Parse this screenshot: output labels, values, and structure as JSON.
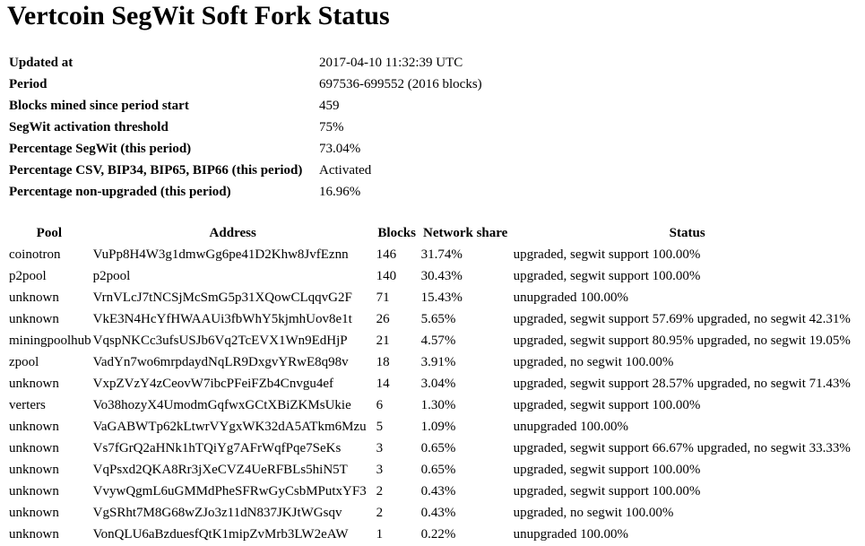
{
  "header": {
    "title": "Vertcoin SegWit Soft Fork Status"
  },
  "summary": {
    "rows": [
      [
        "Updated at",
        "2017-04-10 11:32:39 UTC"
      ],
      [
        "Period",
        "697536-699552 (2016 blocks)"
      ],
      [
        "Blocks mined since period start",
        "459"
      ],
      [
        "SegWit activation threshold",
        "75%"
      ],
      [
        "Percentage SegWit (this period)",
        "73.04%"
      ],
      [
        "Percentage CSV, BIP34, BIP65, BIP66 (this period)",
        "Activated"
      ],
      [
        "Percentage non-upgraded (this period)",
        "16.96%"
      ]
    ]
  },
  "table": {
    "headers": [
      "Pool",
      "Address",
      "Blocks",
      "Network share",
      "Status"
    ],
    "rows": [
      [
        "coinotron",
        "VuPp8H4W3g1dmwGg6pe41D2Khw8JvfEznn",
        "146",
        "31.74%",
        "upgraded, segwit support 100.00%"
      ],
      [
        "p2pool",
        "p2pool",
        "140",
        "30.43%",
        "upgraded, segwit support 100.00%"
      ],
      [
        "unknown",
        "VrnVLcJ7tNCSjMcSmG5p31XQowCLqqvG2F",
        "71",
        "15.43%",
        "unupgraded 100.00%"
      ],
      [
        "unknown",
        "VkE3N4HcYfHWAAUi3fbWhY5kjmhUov8e1t",
        "26",
        "5.65%",
        "upgraded, segwit support 57.69% upgraded, no segwit 42.31%"
      ],
      [
        "miningpoolhub",
        "VqspNKCc3ufsUSJb6Vq2TcEVX1Wn9EdHjP",
        "21",
        "4.57%",
        "upgraded, segwit support 80.95% upgraded, no segwit 19.05%"
      ],
      [
        "zpool",
        "VadYn7wo6mrpdaydNqLR9DxgvYRwE8q98v",
        "18",
        "3.91%",
        "upgraded, no segwit 100.00%"
      ],
      [
        "unknown",
        "VxpZVzY4zCeovW7ibcPFeiFZb4Cnvgu4ef",
        "14",
        "3.04%",
        "upgraded, segwit support 28.57% upgraded, no segwit 71.43%"
      ],
      [
        "verters",
        "Vo38hozyX4UmodmGqfwxGCtXBiZKMsUkie",
        "6",
        "1.30%",
        "upgraded, segwit support 100.00%"
      ],
      [
        "unknown",
        "VaGABWTp62kLtwrVYgxWK32dA5ATkm6Mzu",
        "5",
        "1.09%",
        "unupgraded 100.00%"
      ],
      [
        "unknown",
        "Vs7fGrQ2aHNk1hTQiYg7AFrWqfPqe7SeKs",
        "3",
        "0.65%",
        "upgraded, segwit support 66.67% upgraded, no segwit 33.33%"
      ],
      [
        "unknown",
        "VqPsxd2QKA8Rr3jXeCVZ4UeRFBLs5hiN5T",
        "3",
        "0.65%",
        "upgraded, segwit support 100.00%"
      ],
      [
        "unknown",
        "VvywQgmL6uGMMdPheSFRwGyCsbMPutxYF3",
        "2",
        "0.43%",
        "upgraded, segwit support 100.00%"
      ],
      [
        "unknown",
        "VgSRht7M8G68wZJo3z11dN837JKJtWGsqv",
        "2",
        "0.43%",
        "upgraded, no segwit 100.00%"
      ],
      [
        "unknown",
        "VonQLU6aBzduesfQtK1mipZvMrb3LW2eAW",
        "1",
        "0.22%",
        "unupgraded 100.00%"
      ]
    ]
  }
}
